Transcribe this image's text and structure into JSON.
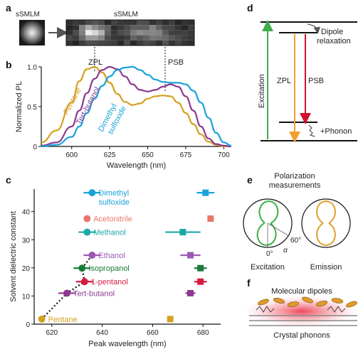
{
  "panels": {
    "a": {
      "label": "a",
      "left_caption": "sSMLM",
      "right_caption": "sSMLM",
      "zpl_label": "ZPL",
      "psb_label": "PSB"
    },
    "b": {
      "label": "b"
    },
    "c": {
      "label": "c"
    },
    "d": {
      "label": "d",
      "dipole_relaxation": [
        "Dipole",
        "relaxation"
      ],
      "excitation": "Excitation",
      "zpl": "ZPL",
      "psb": "PSB",
      "phonon": "+Phonon"
    },
    "e": {
      "label": "e",
      "title": [
        "Polarization",
        "measurements"
      ],
      "angle_0": "0°",
      "angle_60": "60°",
      "alpha": "α",
      "excitation": "Excitation",
      "emission": "Emission"
    },
    "f": {
      "label": "f",
      "top_label": "Molecular dipoles",
      "bottom_label": "Crystal phonons"
    }
  },
  "colors": {
    "pentane": "#d4a020",
    "tert_butanol": "#8b3a8f",
    "dmso": "#1aa3d9",
    "acetonitrile": "#e8786a",
    "methanol": "#1aa8a8",
    "ethanol": "#9b59b6",
    "isopropanol": "#1a7a3a",
    "one_pentanol": "#d81b40",
    "excitation_arrow": "#3cae4a",
    "zpl_arrow": "#f0a030",
    "psb_arrow": "#d01030"
  },
  "chart_data": [
    {
      "panel": "b",
      "type": "line",
      "xlabel": "Wavelength (nm)",
      "ylabel": "Normalized PL",
      "xlim": [
        580,
        705
      ],
      "ylim": [
        0,
        1.0
      ],
      "xticks": [
        600,
        625,
        650,
        675,
        700
      ],
      "yticks": [
        0,
        0.5,
        1.0
      ],
      "ytick_labels": [
        "0",
        "0.5",
        "1.0"
      ],
      "series": [
        {
          "name": "Pentane",
          "color": "#d4a020",
          "x": [
            580,
            590,
            600,
            605,
            610,
            615,
            620,
            625,
            630,
            635,
            640,
            645,
            650,
            655,
            660,
            665,
            670,
            675,
            680,
            685,
            690,
            695,
            700,
            705
          ],
          "y": [
            0.05,
            0.2,
            0.55,
            0.82,
            0.97,
            1.0,
            0.93,
            0.8,
            0.66,
            0.56,
            0.52,
            0.54,
            0.6,
            0.63,
            0.64,
            0.63,
            0.55,
            0.42,
            0.28,
            0.15,
            0.06,
            0.02,
            0.0,
            0.0
          ]
        },
        {
          "name": "Tert-butanol",
          "color": "#8b3a8f",
          "x": [
            580,
            590,
            600,
            605,
            610,
            615,
            620,
            625,
            630,
            635,
            640,
            645,
            650,
            655,
            660,
            665,
            670,
            675,
            680,
            685,
            690,
            695,
            700,
            705
          ],
          "y": [
            0.01,
            0.05,
            0.25,
            0.45,
            0.67,
            0.85,
            0.96,
            1.0,
            0.97,
            0.88,
            0.78,
            0.71,
            0.69,
            0.71,
            0.75,
            0.78,
            0.75,
            0.63,
            0.45,
            0.25,
            0.1,
            0.03,
            0.01,
            0.0
          ]
        },
        {
          "name": "Dimethyl sulfoxide",
          "color": "#1aa3d9",
          "x": [
            580,
            590,
            600,
            605,
            610,
            615,
            620,
            625,
            630,
            635,
            640,
            645,
            650,
            655,
            660,
            665,
            670,
            675,
            680,
            685,
            690,
            695,
            700,
            705
          ],
          "y": [
            0.0,
            0.02,
            0.12,
            0.25,
            0.42,
            0.6,
            0.76,
            0.88,
            0.96,
            0.99,
            1.0,
            0.96,
            0.9,
            0.84,
            0.81,
            0.8,
            0.8,
            0.78,
            0.7,
            0.55,
            0.36,
            0.17,
            0.05,
            0.01
          ]
        }
      ],
      "annotations": [
        "ZPL",
        "PSB"
      ]
    },
    {
      "panel": "c",
      "type": "scatter",
      "xlabel": "Peak wavelength (nm)",
      "ylabel": "Solvent dielectric constant",
      "xlim": [
        613,
        687
      ],
      "ylim": [
        0,
        48
      ],
      "xticks": [
        620,
        640,
        660,
        680
      ],
      "yticks": [
        0,
        10,
        20,
        30,
        40
      ],
      "solvents": [
        {
          "name": "Dimethyl sulfoxide",
          "label": [
            "Dimethyl",
            "sulfoxide"
          ],
          "eps": 46.7,
          "zpl": 636,
          "psb": 681,
          "psb_err": 3.5,
          "color": "#1aa3d9"
        },
        {
          "name": "Acetonitrile",
          "label": [
            "Acetonitrile"
          ],
          "eps": 37.5,
          "zpl": 634,
          "psb": 683,
          "psb_err": 0,
          "color": "#e8786a"
        },
        {
          "name": "Methanol",
          "label": [
            "Methanol"
          ],
          "eps": 32.7,
          "zpl": 634,
          "psb": 672,
          "psb_err": 7,
          "color": "#1aa8a8"
        },
        {
          "name": "Ethanol",
          "label": [
            "Ethanol"
          ],
          "eps": 24.5,
          "zpl": 636,
          "psb": 675,
          "psb_err": 4,
          "color": "#9b59b6"
        },
        {
          "name": "Isopropanol",
          "label": [
            "Isopropanol"
          ],
          "eps": 19.9,
          "zpl": 632,
          "psb": 679,
          "psb_err": 2.5,
          "color": "#1a7a3a"
        },
        {
          "name": "1-pentanol",
          "label": [
            "1-pentanol"
          ],
          "eps": 15.1,
          "zpl": 633,
          "psb": 679,
          "psb_err": 2.5,
          "color": "#d81b40"
        },
        {
          "name": "Tert-butanol",
          "label": [
            "Tert-butanol"
          ],
          "eps": 11.0,
          "zpl": 626,
          "psb": 675,
          "psb_err": 2,
          "color": "#8b3a8f"
        },
        {
          "name": "Pentane",
          "label": [
            "Pentane"
          ],
          "eps": 1.8,
          "zpl": 616,
          "psb": 667,
          "psb_err": 0,
          "color": "#d4a020"
        }
      ]
    }
  ]
}
